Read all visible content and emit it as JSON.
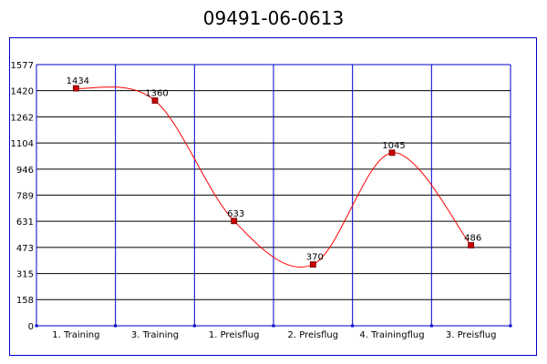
{
  "title": "09491-06-0613",
  "colors": {
    "grid": "#0000cc",
    "line": "#ff0000",
    "marker": "#cc0000",
    "marker_border": "#660000",
    "text": "#000000",
    "background": "#ffffff"
  },
  "chart_data": {
    "type": "line",
    "title": "09491-06-0613",
    "xlabel": "",
    "ylabel": "",
    "categories": [
      "1. Training",
      "3. Training",
      "1. Preisflug",
      "2. Preisflug",
      "4. Trainingflug",
      "3. Preisflug"
    ],
    "series": [
      {
        "values": [
          1434,
          1360,
          633,
          370,
          1045,
          486
        ]
      }
    ],
    "data_labels": [
      "1434",
      "1360",
      "633",
      "370",
      "1045",
      "486"
    ],
    "y_ticks": [
      0,
      158,
      315,
      473,
      631,
      789,
      946,
      1104,
      1262,
      1420,
      1577
    ],
    "ylim": [
      0,
      1577
    ],
    "grid": true,
    "legend": "none",
    "line_style": "smooth"
  }
}
